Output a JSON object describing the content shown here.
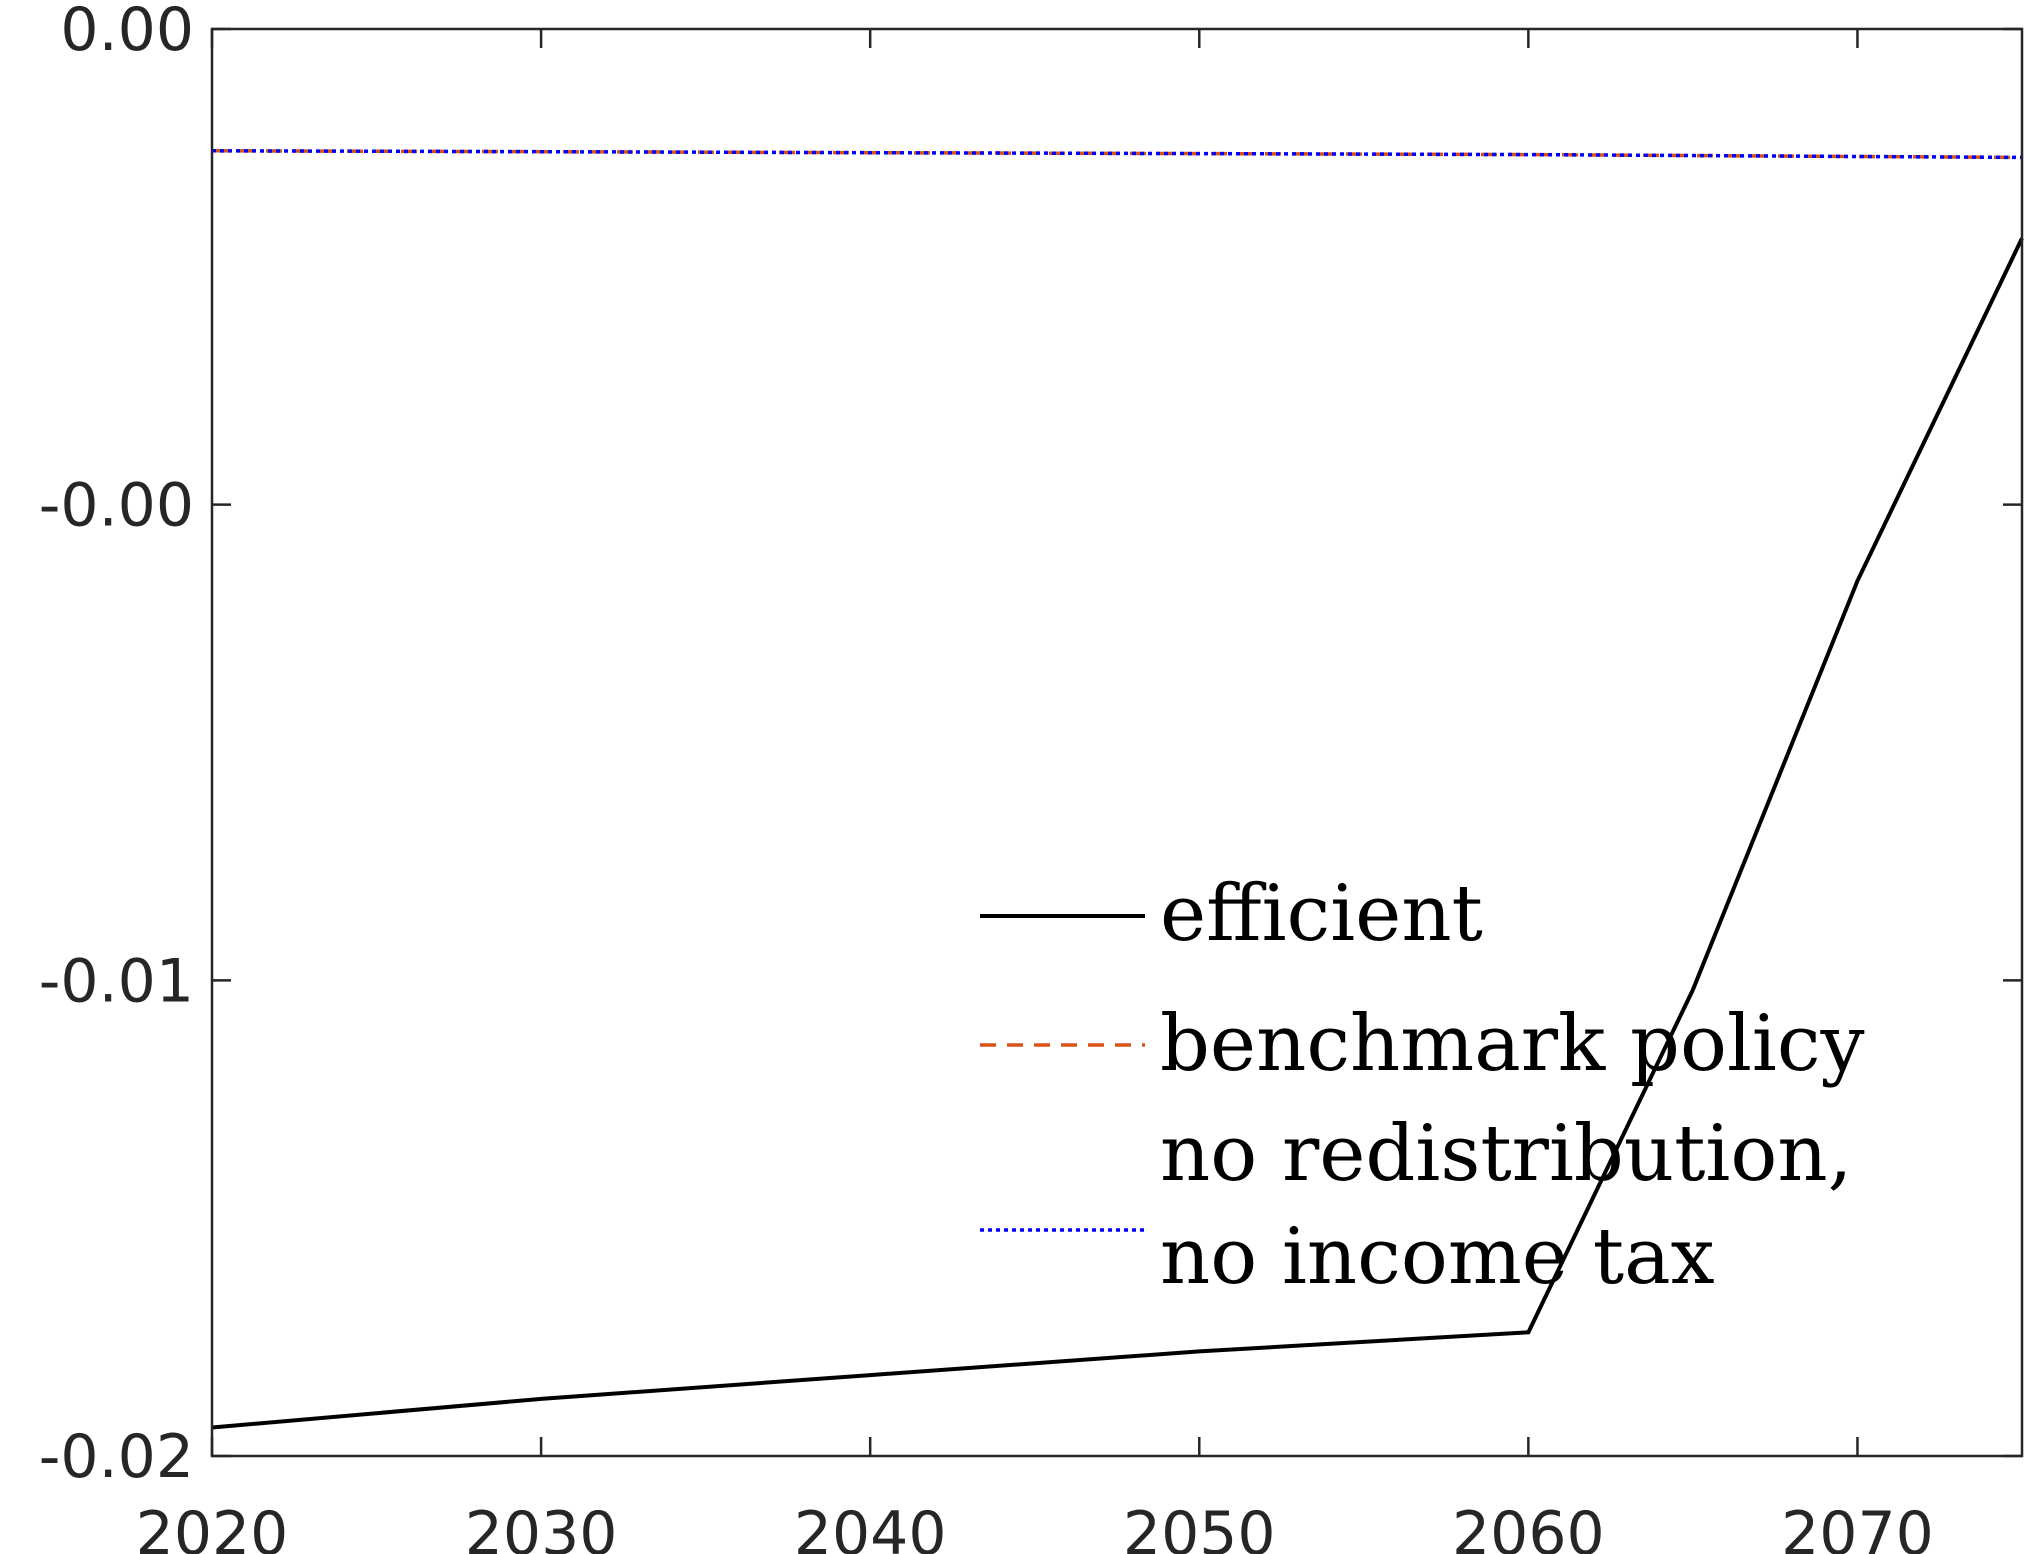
{
  "chart_data": {
    "type": "line",
    "title": "",
    "xlabel": "",
    "ylabel": "",
    "xlim": [
      2020,
      2075
    ],
    "ylim": [
      -0.015,
      0.0
    ],
    "x_ticks": [
      2020,
      2030,
      2040,
      2050,
      2060,
      2070
    ],
    "x_tick_labels": [
      "2020",
      "2030",
      "2040",
      "2050",
      "2060",
      "2070"
    ],
    "y_ticks": [
      0.0,
      -0.005,
      -0.01,
      -0.015
    ],
    "y_tick_labels": [
      "0.00",
      "-0.00",
      "-0.01",
      "-0.02"
    ],
    "grid": false,
    "legend_position": "bottom-right",
    "series": [
      {
        "name": "efficient",
        "color": "#000000",
        "style": "solid",
        "x": [
          2020,
          2030,
          2040,
          2050,
          2060,
          2065,
          2070,
          2075
        ],
        "y": [
          -0.0147,
          -0.0144,
          -0.01415,
          -0.0139,
          -0.0137,
          -0.0101,
          -0.0058,
          -0.0022
        ]
      },
      {
        "name": "benchmark policy",
        "color": "#D95319",
        "style": "dashed",
        "x": [
          2020,
          2030,
          2040,
          2050,
          2060,
          2070,
          2075
        ],
        "y": [
          -0.00128,
          -0.00129,
          -0.0013,
          -0.00131,
          -0.00132,
          -0.00134,
          -0.00135
        ]
      },
      {
        "name": "no redistribution, no income tax",
        "legend_lines": [
          "no redistribution,",
          "no income tax"
        ],
        "color": "#0000FF",
        "style": "dotted",
        "x": [
          2020,
          2030,
          2040,
          2050,
          2060,
          2070,
          2075
        ],
        "y": [
          -0.00128,
          -0.00129,
          -0.0013,
          -0.00131,
          -0.00132,
          -0.00134,
          -0.00135
        ]
      }
    ]
  }
}
